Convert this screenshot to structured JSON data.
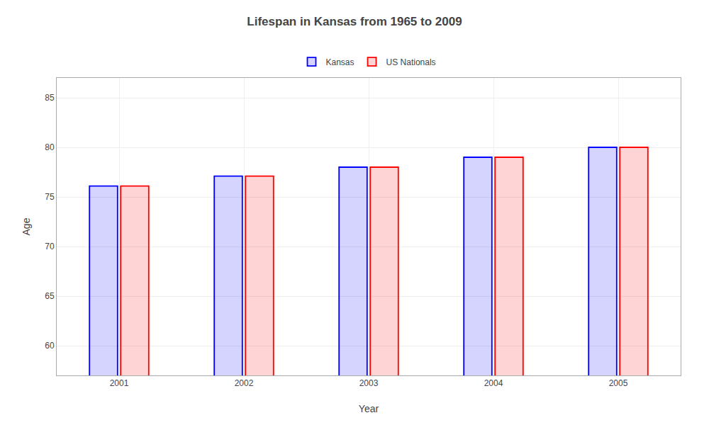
{
  "chart_data": {
    "type": "bar",
    "title": "Lifespan in Kansas from 1965 to 2009",
    "xlabel": "Year",
    "ylabel": "Age",
    "categories": [
      "2001",
      "2002",
      "2003",
      "2004",
      "2005"
    ],
    "series": [
      {
        "name": "Kansas",
        "color": "#0000ff",
        "values": [
          76.1,
          77.1,
          78.0,
          79.0,
          80.0
        ]
      },
      {
        "name": "US Nationals",
        "color": "#ff0000",
        "values": [
          76.1,
          77.1,
          78.0,
          79.0,
          80.0
        ]
      }
    ],
    "ylim": [
      57,
      87
    ],
    "yticks": [
      60,
      65,
      70,
      75,
      80,
      85
    ],
    "grid": true,
    "legend": "top"
  }
}
